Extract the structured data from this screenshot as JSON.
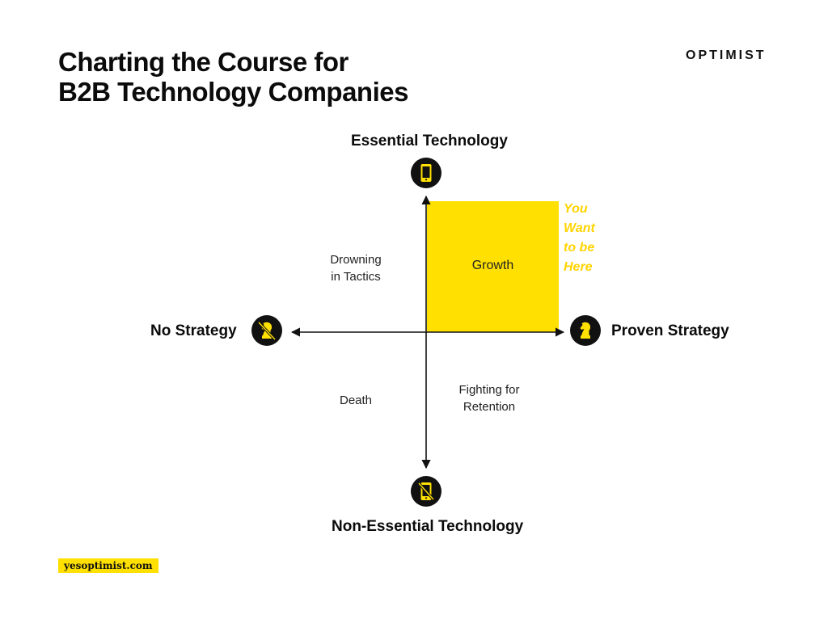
{
  "title": {
    "line1": "Charting the Course for",
    "line2": "B2B Technology Companies"
  },
  "brand": "OPTIMIST",
  "axes": {
    "top": "Essential Technology",
    "bottom": "Non-Essential Technology",
    "left": "No Strategy",
    "right": "Proven Strategy"
  },
  "quadrants": {
    "top_left": {
      "line1": "Drowning",
      "line2": "in Tactics"
    },
    "top_right": "Growth",
    "bottom_left": "Death",
    "bottom_right": {
      "line1": "Fighting for",
      "line2": "Retention"
    }
  },
  "callout": {
    "line1": "You",
    "line2": "Want",
    "line3": "to be",
    "line4": "Here"
  },
  "footer": "yesoptimist.com",
  "icons": {
    "top": "smartphone-icon",
    "bottom": "smartphone-crossed-icon",
    "left": "chess-knight-crossed-icon",
    "right": "chess-knight-icon"
  },
  "colors": {
    "accent": "#ffe000",
    "callout": "#ffd400",
    "icon_bg": "#111111"
  }
}
